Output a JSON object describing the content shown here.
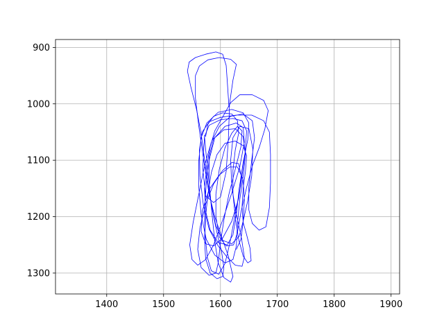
{
  "chart_data": {
    "type": "line",
    "title": "",
    "xlabel": "",
    "ylabel": "",
    "xlim": [
      1310,
      1915
    ],
    "ylim": [
      1337,
      886
    ],
    "y_inverted": true,
    "grid": true,
    "legend": "none",
    "x_ticks": [
      1400,
      1500,
      1600,
      1700,
      1800,
      1900
    ],
    "y_ticks": [
      900,
      1000,
      1100,
      1200,
      1300
    ],
    "series": [
      {
        "color": "#0000ff",
        "points": [
          [
            1572,
            1056
          ],
          [
            1569,
            1115
          ],
          [
            1574,
            1163
          ],
          [
            1588,
            1175
          ],
          [
            1600,
            1165
          ],
          [
            1610,
            1120
          ],
          [
            1614,
            1062
          ],
          [
            1616,
            1000
          ],
          [
            1622,
            958
          ],
          [
            1628,
            930
          ],
          [
            1618,
            921
          ],
          [
            1598,
            918
          ],
          [
            1578,
            922
          ],
          [
            1563,
            933
          ],
          [
            1556,
            950
          ],
          [
            1556,
            990
          ],
          [
            1562,
            1040
          ],
          [
            1572,
            1110
          ],
          [
            1580,
            1160
          ],
          [
            1590,
            1200
          ],
          [
            1602,
            1236
          ],
          [
            1614,
            1270
          ],
          [
            1622,
            1306
          ],
          [
            1618,
            1316
          ],
          [
            1606,
            1308
          ],
          [
            1596,
            1282
          ],
          [
            1590,
            1244
          ],
          [
            1585,
            1194
          ],
          [
            1580,
            1140
          ],
          [
            1575,
            1092
          ],
          [
            1572,
            1058
          ],
          [
            1580,
            1038
          ],
          [
            1600,
            1028
          ],
          [
            1622,
            1026
          ],
          [
            1638,
            1030
          ],
          [
            1646,
            1048
          ],
          [
            1643,
            1090
          ],
          [
            1636,
            1142
          ],
          [
            1626,
            1195
          ],
          [
            1617,
            1245
          ],
          [
            1608,
            1283
          ],
          [
            1597,
            1302
          ],
          [
            1584,
            1296
          ],
          [
            1577,
            1272
          ],
          [
            1573,
            1232
          ],
          [
            1572,
            1190
          ],
          [
            1575,
            1142
          ],
          [
            1580,
            1100
          ],
          [
            1590,
            1060
          ],
          [
            1608,
            1040
          ],
          [
            1628,
            1034
          ],
          [
            1640,
            1042
          ],
          [
            1642,
            1068
          ],
          [
            1634,
            1112
          ],
          [
            1620,
            1158
          ],
          [
            1604,
            1206
          ],
          [
            1588,
            1250
          ],
          [
            1574,
            1276
          ],
          [
            1560,
            1286
          ],
          [
            1550,
            1276
          ],
          [
            1546,
            1250
          ],
          [
            1552,
            1210
          ],
          [
            1562,
            1160
          ],
          [
            1572,
            1110
          ],
          [
            1584,
            1068
          ],
          [
            1598,
            1040
          ],
          [
            1618,
            1022
          ],
          [
            1640,
            1018
          ],
          [
            1656,
            1030
          ],
          [
            1660,
            1060
          ],
          [
            1655,
            1100
          ],
          [
            1650,
            1146
          ],
          [
            1650,
            1188
          ],
          [
            1656,
            1212
          ],
          [
            1668,
            1224
          ],
          [
            1680,
            1218
          ],
          [
            1686,
            1184
          ],
          [
            1688,
            1140
          ],
          [
            1688,
            1090
          ],
          [
            1686,
            1050
          ],
          [
            1676,
            1030
          ],
          [
            1655,
            1020
          ],
          [
            1628,
            1020
          ],
          [
            1600,
            1024
          ],
          [
            1580,
            1032
          ],
          [
            1568,
            1050
          ],
          [
            1563,
            1082
          ],
          [
            1564,
            1128
          ],
          [
            1570,
            1180
          ],
          [
            1580,
            1222
          ],
          [
            1596,
            1252
          ],
          [
            1612,
            1272
          ],
          [
            1626,
            1286
          ],
          [
            1638,
            1288
          ],
          [
            1642,
            1272
          ],
          [
            1637,
            1238
          ],
          [
            1628,
            1195
          ],
          [
            1620,
            1148
          ],
          [
            1618,
            1100
          ],
          [
            1622,
            1060
          ],
          [
            1634,
            1040
          ],
          [
            1650,
            1044
          ],
          [
            1657,
            1080
          ],
          [
            1655,
            1128
          ],
          [
            1648,
            1172
          ],
          [
            1640,
            1208
          ],
          [
            1633,
            1235
          ],
          [
            1620,
            1248
          ],
          [
            1604,
            1242
          ],
          [
            1592,
            1216
          ],
          [
            1584,
            1180
          ],
          [
            1580,
            1140
          ],
          [
            1580,
            1094
          ],
          [
            1588,
            1062
          ],
          [
            1606,
            1046
          ],
          [
            1626,
            1044
          ],
          [
            1640,
            1058
          ],
          [
            1644,
            1090
          ],
          [
            1640,
            1130
          ],
          [
            1634,
            1170
          ],
          [
            1630,
            1212
          ],
          [
            1628,
            1252
          ],
          [
            1622,
            1276
          ],
          [
            1608,
            1282
          ],
          [
            1590,
            1268
          ],
          [
            1575,
            1240
          ],
          [
            1566,
            1196
          ],
          [
            1562,
            1148
          ],
          [
            1562,
            1100
          ],
          [
            1566,
            1060
          ],
          [
            1576,
            1034
          ],
          [
            1596,
            1015
          ],
          [
            1620,
            1010
          ],
          [
            1640,
            1016
          ],
          [
            1650,
            1034
          ],
          [
            1648,
            1064
          ],
          [
            1640,
            1104
          ],
          [
            1633,
            1150
          ],
          [
            1628,
            1196
          ],
          [
            1622,
            1232
          ],
          [
            1612,
            1250
          ],
          [
            1596,
            1246
          ],
          [
            1582,
            1224
          ],
          [
            1574,
            1190
          ],
          [
            1572,
            1150
          ],
          [
            1576,
            1110
          ],
          [
            1582,
            1076
          ],
          [
            1590,
            1048
          ],
          [
            1603,
            1025
          ],
          [
            1618,
            998
          ],
          [
            1634,
            984
          ],
          [
            1656,
            984
          ],
          [
            1676,
            994
          ],
          [
            1684,
            1012
          ],
          [
            1678,
            1045
          ],
          [
            1668,
            1078
          ],
          [
            1656,
            1110
          ],
          [
            1646,
            1148
          ],
          [
            1636,
            1192
          ],
          [
            1630,
            1228
          ],
          [
            1623,
            1250
          ],
          [
            1610,
            1252
          ],
          [
            1598,
            1236
          ],
          [
            1592,
            1200
          ],
          [
            1592,
            1160
          ],
          [
            1598,
            1116
          ],
          [
            1608,
            1078
          ],
          [
            1620,
            1052
          ],
          [
            1630,
            1040
          ],
          [
            1638,
            1048
          ],
          [
            1636,
            1076
          ],
          [
            1626,
            1116
          ],
          [
            1615,
            1160
          ],
          [
            1606,
            1206
          ],
          [
            1600,
            1246
          ],
          [
            1596,
            1282
          ],
          [
            1592,
            1300
          ],
          [
            1580,
            1304
          ],
          [
            1566,
            1290
          ],
          [
            1560,
            1258
          ],
          [
            1564,
            1220
          ],
          [
            1574,
            1178
          ],
          [
            1588,
            1142
          ],
          [
            1604,
            1118
          ],
          [
            1620,
            1104
          ],
          [
            1632,
            1106
          ],
          [
            1637,
            1130
          ],
          [
            1632,
            1168
          ],
          [
            1620,
            1208
          ],
          [
            1604,
            1238
          ],
          [
            1588,
            1252
          ],
          [
            1574,
            1248
          ],
          [
            1566,
            1226
          ],
          [
            1568,
            1190
          ],
          [
            1580,
            1152
          ],
          [
            1598,
            1126
          ],
          [
            1616,
            1112
          ],
          [
            1630,
            1112
          ],
          [
            1640,
            1134
          ],
          [
            1642,
            1172
          ],
          [
            1640,
            1210
          ],
          [
            1636,
            1240
          ],
          [
            1628,
            1258
          ]
        ]
      },
      {
        "color": "#0000ff",
        "points": [
          [
            1615,
            1005
          ],
          [
            1612,
            960
          ],
          [
            1610,
            932
          ],
          [
            1604,
            912
          ],
          [
            1592,
            908
          ],
          [
            1574,
            912
          ],
          [
            1556,
            918
          ],
          [
            1545,
            926
          ],
          [
            1542,
            942
          ],
          [
            1548,
            970
          ],
          [
            1558,
            1010
          ],
          [
            1566,
            1052
          ],
          [
            1572,
            1098
          ],
          [
            1578,
            1140
          ],
          [
            1584,
            1178
          ],
          [
            1590,
            1210
          ],
          [
            1596,
            1238
          ],
          [
            1602,
            1262
          ],
          [
            1606,
            1290
          ],
          [
            1604,
            1306
          ],
          [
            1594,
            1310
          ],
          [
            1582,
            1300
          ],
          [
            1574,
            1274
          ],
          [
            1572,
            1240
          ],
          [
            1574,
            1200
          ],
          [
            1578,
            1160
          ],
          [
            1584,
            1122
          ],
          [
            1594,
            1090
          ],
          [
            1608,
            1070
          ],
          [
            1626,
            1066
          ],
          [
            1640,
            1074
          ],
          [
            1646,
            1092
          ],
          [
            1644,
            1120
          ],
          [
            1640,
            1150
          ],
          [
            1638,
            1182
          ],
          [
            1640,
            1210
          ],
          [
            1646,
            1232
          ],
          [
            1652,
            1256
          ],
          [
            1654,
            1278
          ],
          [
            1648,
            1282
          ],
          [
            1640,
            1270
          ],
          [
            1632,
            1240
          ],
          [
            1626,
            1200
          ],
          [
            1622,
            1160
          ],
          [
            1622,
            1118
          ],
          [
            1626,
            1082
          ],
          [
            1632,
            1052
          ],
          [
            1630,
            1030
          ],
          [
            1620,
            1018
          ],
          [
            1604,
            1016
          ],
          [
            1588,
            1022
          ],
          [
            1578,
            1036
          ],
          [
            1574,
            1058
          ]
        ]
      }
    ]
  }
}
